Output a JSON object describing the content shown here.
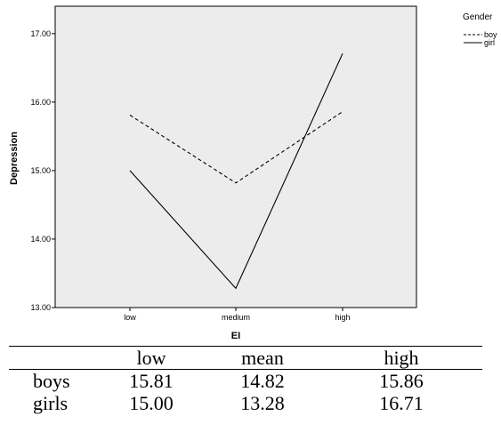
{
  "chart_data": {
    "type": "line",
    "categories": [
      "low",
      "medium",
      "high"
    ],
    "series": [
      {
        "name": "boy",
        "values": [
          15.81,
          14.82,
          15.86
        ],
        "dash": "dashed",
        "color": "#000000"
      },
      {
        "name": "girl",
        "values": [
          15.0,
          13.28,
          16.71
        ],
        "dash": "solid",
        "color": "#000000"
      }
    ],
    "xlabel": "EI",
    "ylabel": "Depression",
    "ylim": [
      13.0,
      17.4
    ],
    "yticks": [
      "13.00",
      "14.00",
      "15.00",
      "16.00",
      "17.00"
    ],
    "legend_title": "Gender",
    "legend_placement": "top-right outside",
    "plot_background": "#ececec",
    "grid": false
  },
  "table": {
    "header": [
      "",
      "low",
      "mean",
      "high"
    ],
    "rows": [
      {
        "label": "boys",
        "values": [
          "15.81",
          "14.82",
          "15.86"
        ]
      },
      {
        "label": "girls",
        "values": [
          "15.00",
          "13.28",
          "16.71"
        ]
      }
    ]
  }
}
